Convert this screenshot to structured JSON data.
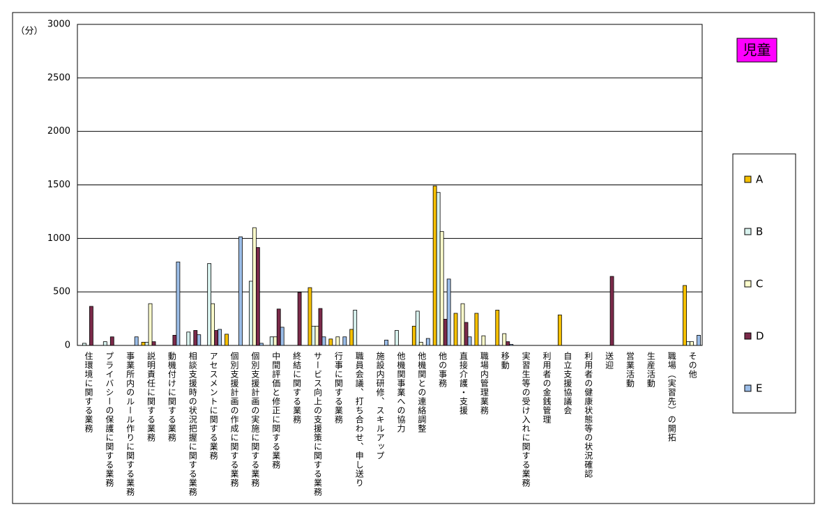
{
  "chart_data": {
    "type": "bar",
    "title": "児童",
    "y_label": "（分）",
    "categories": [
      "住環境に関する業務",
      "プライバシーの保護に関する業務",
      "事業所内のルール作りに関する業務",
      "説明責任に関する業務",
      "動機付けに関する業務",
      "相談支援時の状況把握に関する業務",
      "アセスメントに関する業務",
      "個別支援計画の作成に関する業務",
      "個別支援計画の実施に関する業務",
      "中間評価と修正に関する業務",
      "終結に関する業務",
      "サービス向上の支援策に関する業務",
      "行事に関する業務",
      "職員会議、打ち合わせ、申し送り",
      "施設内研修、スキルアップ",
      "他機関事業への協力",
      "他機関との連絡調整",
      "他の事務",
      "直接介護・支援",
      "職場内管理業務",
      "移動",
      "実習生等の受け入れに関する業務",
      "利用者の金銭管理",
      "自立支援協議会",
      "利用者の健康状態等の状況確認",
      "送迎",
      "営業活動",
      "生産活動",
      "職場（実習先）の開拓",
      "その他"
    ],
    "series": [
      {
        "name": "A",
        "color": "#f5c000",
        "values": [
          0,
          0,
          0,
          30,
          0,
          0,
          0,
          105,
          0,
          0,
          0,
          540,
          60,
          150,
          0,
          0,
          180,
          1490,
          300,
          300,
          330,
          0,
          0,
          285,
          0,
          0,
          0,
          0,
          0,
          560
        ]
      },
      {
        "name": "B",
        "color": "#d8f2ee",
        "values": [
          20,
          35,
          0,
          30,
          0,
          125,
          765,
          0,
          600,
          80,
          0,
          180,
          0,
          330,
          0,
          140,
          320,
          1430,
          0,
          0,
          0,
          0,
          0,
          0,
          0,
          0,
          0,
          0,
          0,
          35
        ]
      },
      {
        "name": "C",
        "color": "#ffffcc",
        "values": [
          0,
          0,
          0,
          390,
          0,
          0,
          390,
          0,
          1100,
          80,
          0,
          180,
          80,
          0,
          0,
          0,
          30,
          1065,
          390,
          90,
          110,
          0,
          0,
          0,
          0,
          0,
          0,
          0,
          0,
          35
        ]
      },
      {
        "name": "D",
        "color": "#7b2a4a",
        "values": [
          365,
          80,
          0,
          35,
          95,
          140,
          140,
          0,
          915,
          340,
          495,
          345,
          0,
          0,
          0,
          0,
          0,
          245,
          215,
          0,
          35,
          0,
          0,
          0,
          0,
          645,
          0,
          0,
          0,
          0
        ]
      },
      {
        "name": "E",
        "color": "#9bbde8",
        "values": [
          0,
          0,
          80,
          0,
          780,
          100,
          150,
          1015,
          20,
          170,
          0,
          80,
          80,
          0,
          50,
          0,
          65,
          620,
          80,
          0,
          10,
          0,
          0,
          0,
          0,
          0,
          0,
          0,
          0,
          95
        ]
      }
    ],
    "ylim": [
      0,
      3000
    ],
    "yticks": [
      0,
      500,
      1000,
      1500,
      2000,
      2500,
      3000
    ],
    "grid": true
  }
}
